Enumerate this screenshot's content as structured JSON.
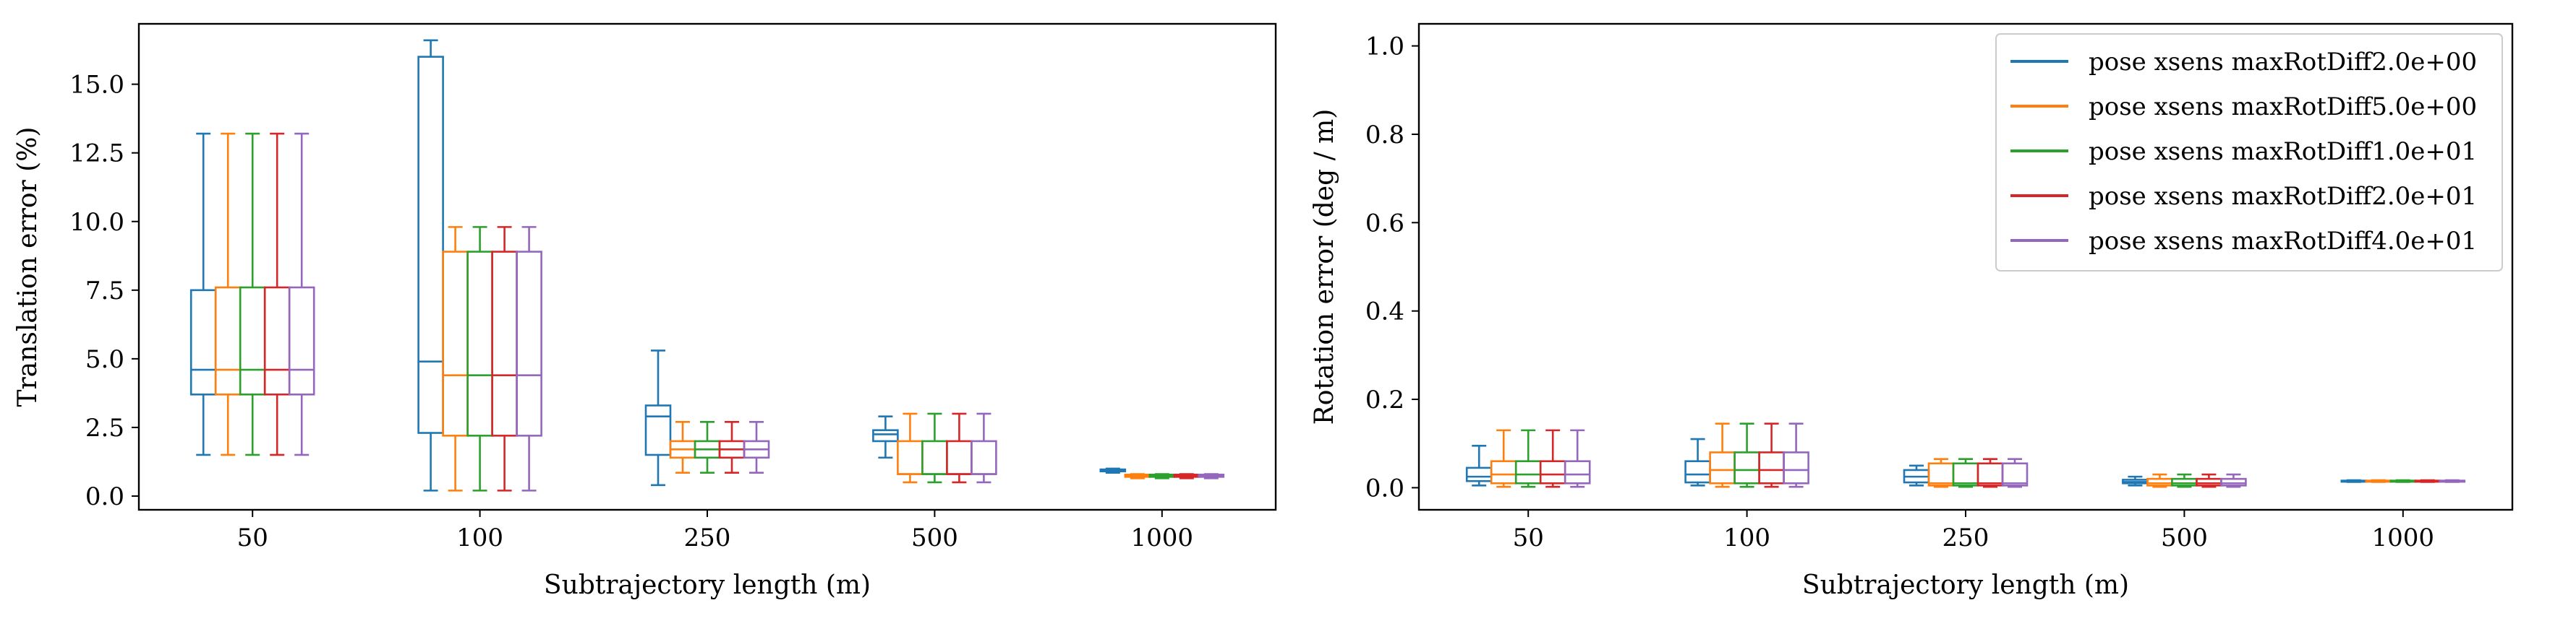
{
  "chart_data": [
    {
      "type": "box",
      "xlabel": "Subtrajectory length (m)",
      "ylabel": "Translation error (%)",
      "ylim": [
        -0.5,
        17.2
      ],
      "yticks": [
        0.0,
        2.5,
        5.0,
        7.5,
        10.0,
        12.5,
        15.0
      ],
      "ytick_labels": [
        "0.0",
        "2.5",
        "5.0",
        "7.5",
        "10.0",
        "12.5",
        "15.0"
      ],
      "categories": [
        "50",
        "100",
        "250",
        "500",
        "1000"
      ],
      "grid": false,
      "series": [
        {
          "name": "pose xsens maxRotDiff2.0e+00",
          "color": "#1f77b4",
          "boxes": [
            {
              "whislo": 1.5,
              "q1": 3.7,
              "med": 4.6,
              "q3": 7.5,
              "whishi": 13.2
            },
            {
              "whislo": 0.2,
              "q1": 2.3,
              "med": 4.9,
              "q3": 16.0,
              "whishi": 16.6
            },
            {
              "whislo": 0.4,
              "q1": 1.5,
              "med": 2.9,
              "q3": 3.3,
              "whishi": 5.3
            },
            {
              "whislo": 1.4,
              "q1": 2.0,
              "med": 2.25,
              "q3": 2.4,
              "whishi": 2.9
            },
            {
              "whislo": 0.85,
              "q1": 0.9,
              "med": 0.93,
              "q3": 0.97,
              "whishi": 1.0
            }
          ]
        },
        {
          "name": "pose xsens maxRotDiff5.0e+00",
          "color": "#ff7f0e",
          "boxes": [
            {
              "whislo": 1.5,
              "q1": 3.7,
              "med": 4.6,
              "q3": 7.6,
              "whishi": 13.2
            },
            {
              "whislo": 0.2,
              "q1": 2.2,
              "med": 4.4,
              "q3": 8.9,
              "whishi": 9.8
            },
            {
              "whislo": 0.85,
              "q1": 1.4,
              "med": 1.7,
              "q3": 2.0,
              "whishi": 2.7
            },
            {
              "whislo": 0.5,
              "q1": 0.8,
              "med": 0.8,
              "q3": 2.0,
              "whishi": 3.0
            },
            {
              "whislo": 0.65,
              "q1": 0.7,
              "med": 0.73,
              "q3": 0.78,
              "whishi": 0.8
            }
          ]
        },
        {
          "name": "pose xsens maxRotDiff1.0e+01",
          "color": "#2ca02c",
          "boxes": [
            {
              "whislo": 1.5,
              "q1": 3.7,
              "med": 4.6,
              "q3": 7.6,
              "whishi": 13.2
            },
            {
              "whislo": 0.2,
              "q1": 2.2,
              "med": 4.4,
              "q3": 8.9,
              "whishi": 9.8
            },
            {
              "whislo": 0.85,
              "q1": 1.4,
              "med": 1.7,
              "q3": 2.0,
              "whishi": 2.7
            },
            {
              "whislo": 0.5,
              "q1": 0.8,
              "med": 0.8,
              "q3": 2.0,
              "whishi": 3.0
            },
            {
              "whislo": 0.65,
              "q1": 0.7,
              "med": 0.73,
              "q3": 0.78,
              "whishi": 0.8
            }
          ]
        },
        {
          "name": "pose xsens maxRotDiff2.0e+01",
          "color": "#d62728",
          "boxes": [
            {
              "whislo": 1.5,
              "q1": 3.7,
              "med": 4.6,
              "q3": 7.6,
              "whishi": 13.2
            },
            {
              "whislo": 0.2,
              "q1": 2.2,
              "med": 4.4,
              "q3": 8.9,
              "whishi": 9.8
            },
            {
              "whislo": 0.85,
              "q1": 1.4,
              "med": 1.7,
              "q3": 2.0,
              "whishi": 2.7
            },
            {
              "whislo": 0.5,
              "q1": 0.8,
              "med": 0.8,
              "q3": 2.0,
              "whishi": 3.0
            },
            {
              "whislo": 0.65,
              "q1": 0.7,
              "med": 0.73,
              "q3": 0.78,
              "whishi": 0.8
            }
          ]
        },
        {
          "name": "pose xsens maxRotDiff4.0e+01",
          "color": "#9467bd",
          "boxes": [
            {
              "whislo": 1.5,
              "q1": 3.7,
              "med": 4.6,
              "q3": 7.6,
              "whishi": 13.2
            },
            {
              "whislo": 0.2,
              "q1": 2.2,
              "med": 4.4,
              "q3": 8.9,
              "whishi": 9.8
            },
            {
              "whislo": 0.85,
              "q1": 1.4,
              "med": 1.7,
              "q3": 2.0,
              "whishi": 2.7
            },
            {
              "whislo": 0.5,
              "q1": 0.8,
              "med": 0.8,
              "q3": 2.0,
              "whishi": 3.0
            },
            {
              "whislo": 0.65,
              "q1": 0.7,
              "med": 0.73,
              "q3": 0.78,
              "whishi": 0.8
            }
          ]
        }
      ]
    },
    {
      "type": "box",
      "xlabel": "Subtrajectory length (m)",
      "ylabel": "Rotation error (deg / m)",
      "ylim": [
        -0.05,
        1.05
      ],
      "yticks": [
        0.0,
        0.2,
        0.4,
        0.6,
        0.8,
        1.0
      ],
      "ytick_labels": [
        "0.0",
        "0.2",
        "0.4",
        "0.6",
        "0.8",
        "1.0"
      ],
      "categories": [
        "50",
        "100",
        "250",
        "500",
        "1000"
      ],
      "grid": false,
      "legend": "top-right",
      "series": [
        {
          "name": "pose xsens maxRotDiff2.0e+00",
          "color": "#1f77b4",
          "boxes": [
            {
              "whislo": 0.005,
              "q1": 0.015,
              "med": 0.025,
              "q3": 0.045,
              "whishi": 0.095
            },
            {
              "whislo": 0.005,
              "q1": 0.012,
              "med": 0.03,
              "q3": 0.06,
              "whishi": 0.11
            },
            {
              "whislo": 0.005,
              "q1": 0.012,
              "med": 0.025,
              "q3": 0.04,
              "whishi": 0.05
            },
            {
              "whislo": 0.005,
              "q1": 0.01,
              "med": 0.013,
              "q3": 0.018,
              "whishi": 0.025
            },
            {
              "whislo": 0.013,
              "q1": 0.014,
              "med": 0.015,
              "q3": 0.016,
              "whishi": 0.017
            }
          ]
        },
        {
          "name": "pose xsens maxRotDiff5.0e+00",
          "color": "#ff7f0e",
          "boxes": [
            {
              "whislo": 0.002,
              "q1": 0.01,
              "med": 0.03,
              "q3": 0.06,
              "whishi": 0.13
            },
            {
              "whislo": 0.002,
              "q1": 0.01,
              "med": 0.04,
              "q3": 0.08,
              "whishi": 0.145
            },
            {
              "whislo": 0.002,
              "q1": 0.005,
              "med": 0.01,
              "q3": 0.055,
              "whishi": 0.065
            },
            {
              "whislo": 0.002,
              "q1": 0.005,
              "med": 0.01,
              "q3": 0.02,
              "whishi": 0.03
            },
            {
              "whislo": 0.013,
              "q1": 0.014,
              "med": 0.015,
              "q3": 0.016,
              "whishi": 0.017
            }
          ]
        },
        {
          "name": "pose xsens maxRotDiff1.0e+01",
          "color": "#2ca02c",
          "boxes": [
            {
              "whislo": 0.002,
              "q1": 0.01,
              "med": 0.03,
              "q3": 0.06,
              "whishi": 0.13
            },
            {
              "whislo": 0.002,
              "q1": 0.01,
              "med": 0.04,
              "q3": 0.08,
              "whishi": 0.145
            },
            {
              "whislo": 0.002,
              "q1": 0.005,
              "med": 0.01,
              "q3": 0.055,
              "whishi": 0.065
            },
            {
              "whislo": 0.002,
              "q1": 0.005,
              "med": 0.01,
              "q3": 0.02,
              "whishi": 0.03
            },
            {
              "whislo": 0.013,
              "q1": 0.014,
              "med": 0.015,
              "q3": 0.016,
              "whishi": 0.017
            }
          ]
        },
        {
          "name": "pose xsens maxRotDiff2.0e+01",
          "color": "#d62728",
          "boxes": [
            {
              "whislo": 0.002,
              "q1": 0.01,
              "med": 0.03,
              "q3": 0.06,
              "whishi": 0.13
            },
            {
              "whislo": 0.002,
              "q1": 0.01,
              "med": 0.04,
              "q3": 0.08,
              "whishi": 0.145
            },
            {
              "whislo": 0.002,
              "q1": 0.005,
              "med": 0.01,
              "q3": 0.055,
              "whishi": 0.065
            },
            {
              "whislo": 0.002,
              "q1": 0.005,
              "med": 0.01,
              "q3": 0.02,
              "whishi": 0.03
            },
            {
              "whislo": 0.013,
              "q1": 0.014,
              "med": 0.015,
              "q3": 0.016,
              "whishi": 0.017
            }
          ]
        },
        {
          "name": "pose xsens maxRotDiff4.0e+01",
          "color": "#9467bd",
          "boxes": [
            {
              "whislo": 0.002,
              "q1": 0.01,
              "med": 0.03,
              "q3": 0.06,
              "whishi": 0.13
            },
            {
              "whislo": 0.002,
              "q1": 0.01,
              "med": 0.04,
              "q3": 0.08,
              "whishi": 0.145
            },
            {
              "whislo": 0.002,
              "q1": 0.005,
              "med": 0.01,
              "q3": 0.055,
              "whishi": 0.065
            },
            {
              "whislo": 0.002,
              "q1": 0.005,
              "med": 0.01,
              "q3": 0.02,
              "whishi": 0.03
            },
            {
              "whislo": 0.013,
              "q1": 0.014,
              "med": 0.015,
              "q3": 0.016,
              "whishi": 0.017
            }
          ]
        }
      ]
    }
  ]
}
